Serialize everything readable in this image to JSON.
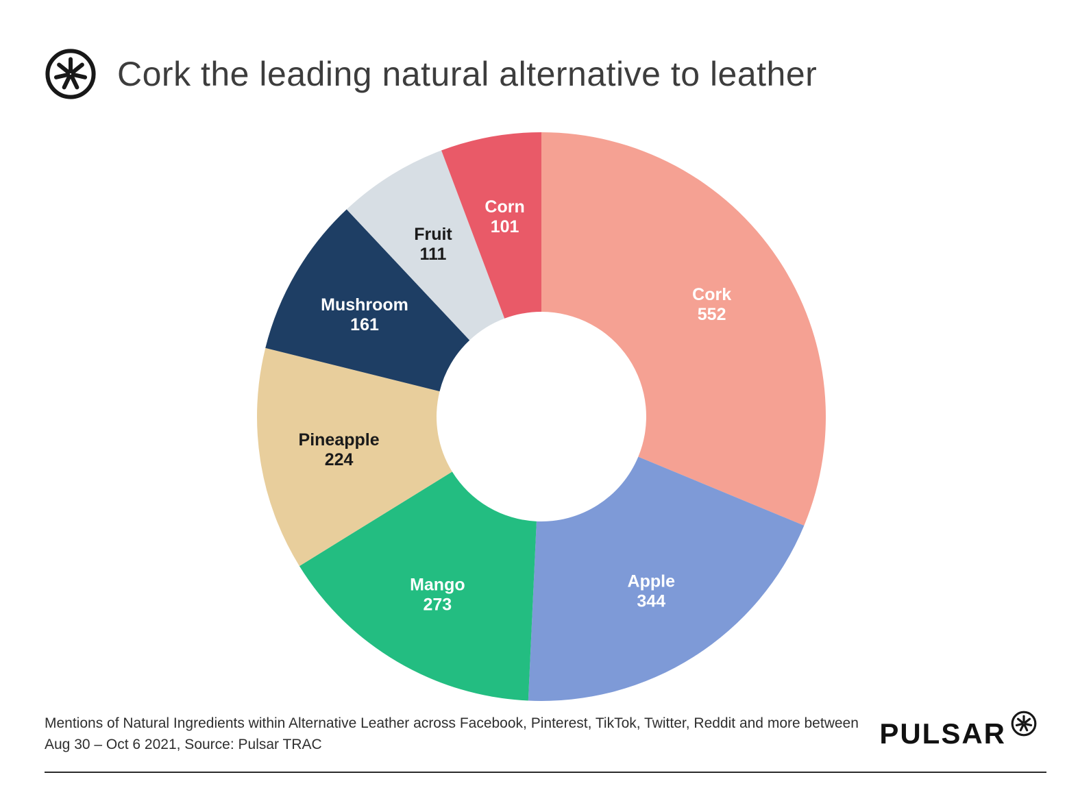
{
  "header": {
    "title": "Cork the leading natural alternative to leather"
  },
  "chart_data": {
    "type": "pie",
    "subtype": "donut",
    "title": "Cork the leading natural alternative to leather",
    "start_angle_deg": 0,
    "direction": "clockwise",
    "labels": "inside",
    "legend_position": "none",
    "series": [
      {
        "label": "Cork",
        "value": 552,
        "color": "#F5A193",
        "label_color": "#FFFFFF"
      },
      {
        "label": "Apple",
        "value": 344,
        "color": "#7E9AD7",
        "label_color": "#FFFFFF"
      },
      {
        "label": "Mango",
        "value": 273,
        "color": "#23BD81",
        "label_color": "#FFFFFF"
      },
      {
        "label": "Pineapple",
        "value": 224,
        "color": "#E8CE9C",
        "label_color": "#1A1A1A"
      },
      {
        "label": "Mushroom",
        "value": 161,
        "color": "#1E3E64",
        "label_color": "#FFFFFF"
      },
      {
        "label": "Fruit",
        "value": 111,
        "color": "#D7DEE4",
        "label_color": "#1A1A1A"
      },
      {
        "label": "Corn",
        "value": 101,
        "color": "#E95A68",
        "label_color": "#FFFFFF"
      }
    ]
  },
  "footer": {
    "caption_line1": "Mentions of Natural Ingredients within Alternative Leather across Facebook, Pinterest, TikTok, Twitter, Reddit and more between",
    "caption_line2": "Aug 30 – Oct 6 2021, Source: Pulsar TRAC",
    "brand": "PULSAR"
  },
  "colors": {
    "background": "#FFFFFF",
    "title_text": "#3D3D3D",
    "caption_text": "#2E2E2E",
    "rule": "#2A2A2A"
  }
}
